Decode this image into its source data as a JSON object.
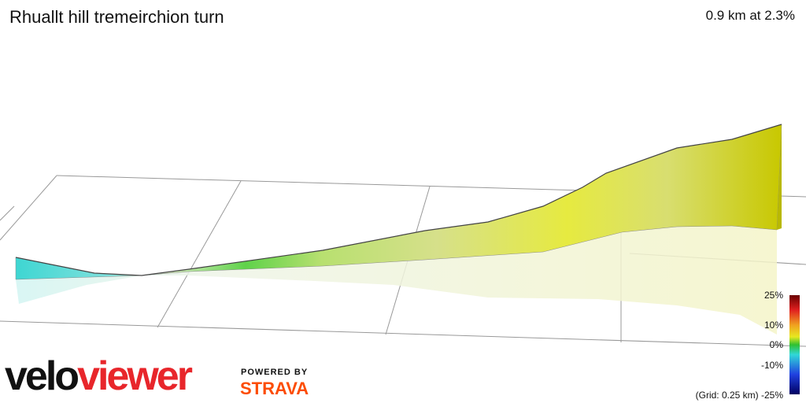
{
  "header": {
    "title": "Rhuallt hill tremeirchion turn",
    "stats": "0.9 km at 2.3%"
  },
  "legend": {
    "labels": [
      "25%",
      "10%",
      "0%",
      "-10%",
      "-25%"
    ],
    "grid_note": "(Grid: 0.25 km)"
  },
  "branding": {
    "logo_part1": "velo",
    "logo_part2": "viewer",
    "powered_by": "POWERED BY",
    "partner": "STRAVA"
  }
}
